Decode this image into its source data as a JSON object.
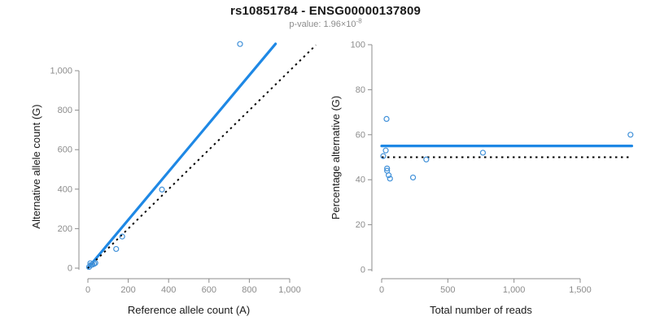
{
  "header": {
    "title": "rs10851784 - ENSG00000137809",
    "pvalue_label": "p-value:",
    "pvalue_base": "1.96×10",
    "pvalue_exponent": "-8"
  },
  "colors": {
    "line_blue": "#1e88e5",
    "point_blue": "#4191d9",
    "identity_black": "#000000",
    "axis_gray": "#8c8c8c",
    "tick_label_gray": "#8c8c8c",
    "axis_title_color": "#1a1a1a"
  },
  "chart_data": [
    {
      "id": "allele-counts-scatter",
      "type": "scatter",
      "title": "",
      "xlabel": "Reference allele count (A)",
      "ylabel": "Alternative allele count (G)",
      "xlim": [
        0,
        1000
      ],
      "ylim": [
        0,
        1000
      ],
      "grid": false,
      "legend": "none",
      "xticks": [
        0,
        200,
        400,
        600,
        800,
        1000
      ],
      "xtick_labels": [
        "0",
        "200",
        "400",
        "600",
        "800",
        "1,000"
      ],
      "yticks": [
        0,
        200,
        400,
        600,
        800,
        1000
      ],
      "ytick_labels": [
        "0",
        "200",
        "400",
        "600",
        "800",
        "1,000"
      ],
      "points": [
        [
          6,
          6
        ],
        [
          12,
          25
        ],
        [
          15,
          16
        ],
        [
          22,
          18
        ],
        [
          23,
          18
        ],
        [
          31,
          22
        ],
        [
          37,
          26
        ],
        [
          140,
          97
        ],
        [
          170,
          160
        ],
        [
          367,
          398
        ],
        [
          754,
          1135
        ]
      ],
      "lines": [
        {
          "name": "fitted-allelic-ratio-line",
          "style": "solid",
          "color_key": "line_blue",
          "points": [
            [
              0,
              0
            ],
            [
              930,
              1136
            ]
          ]
        },
        {
          "name": "identity-line",
          "style": "dotted",
          "color_key": "identity_black",
          "points": [
            [
              0,
              0
            ],
            [
              1130,
              1130
            ]
          ]
        }
      ]
    },
    {
      "id": "percentage-vs-reads-scatter",
      "type": "scatter",
      "title": "",
      "xlabel": "Total number of reads",
      "ylabel": "Percentage alternative (G)",
      "xlim": [
        0,
        1500
      ],
      "ylim": [
        0,
        100
      ],
      "grid": false,
      "legend": "none",
      "xticks": [
        0,
        500,
        1000,
        1500
      ],
      "xtick_labels": [
        "0",
        "500",
        "1,000",
        "1,500"
      ],
      "yticks": [
        0,
        20,
        40,
        60,
        80,
        100
      ],
      "ytick_labels": [
        "0",
        "20",
        "40",
        "60",
        "80",
        "100"
      ],
      "points": [
        [
          12,
          50.5
        ],
        [
          31,
          53
        ],
        [
          37,
          67
        ],
        [
          41,
          45
        ],
        [
          41,
          44
        ],
        [
          53,
          42
        ],
        [
          63,
          40.5
        ],
        [
          237,
          41
        ],
        [
          337,
          49
        ],
        [
          765,
          52
        ],
        [
          1880,
          60
        ]
      ],
      "lines": [
        {
          "name": "mean-alt-percentage-line",
          "style": "solid",
          "color_key": "line_blue",
          "points": [
            [
              0,
              55
            ],
            [
              1890,
              55
            ]
          ]
        },
        {
          "name": "fifty-percent-line",
          "style": "dotted",
          "color_key": "identity_black",
          "points": [
            [
              0,
              50
            ],
            [
              1890,
              50
            ]
          ]
        }
      ]
    }
  ]
}
